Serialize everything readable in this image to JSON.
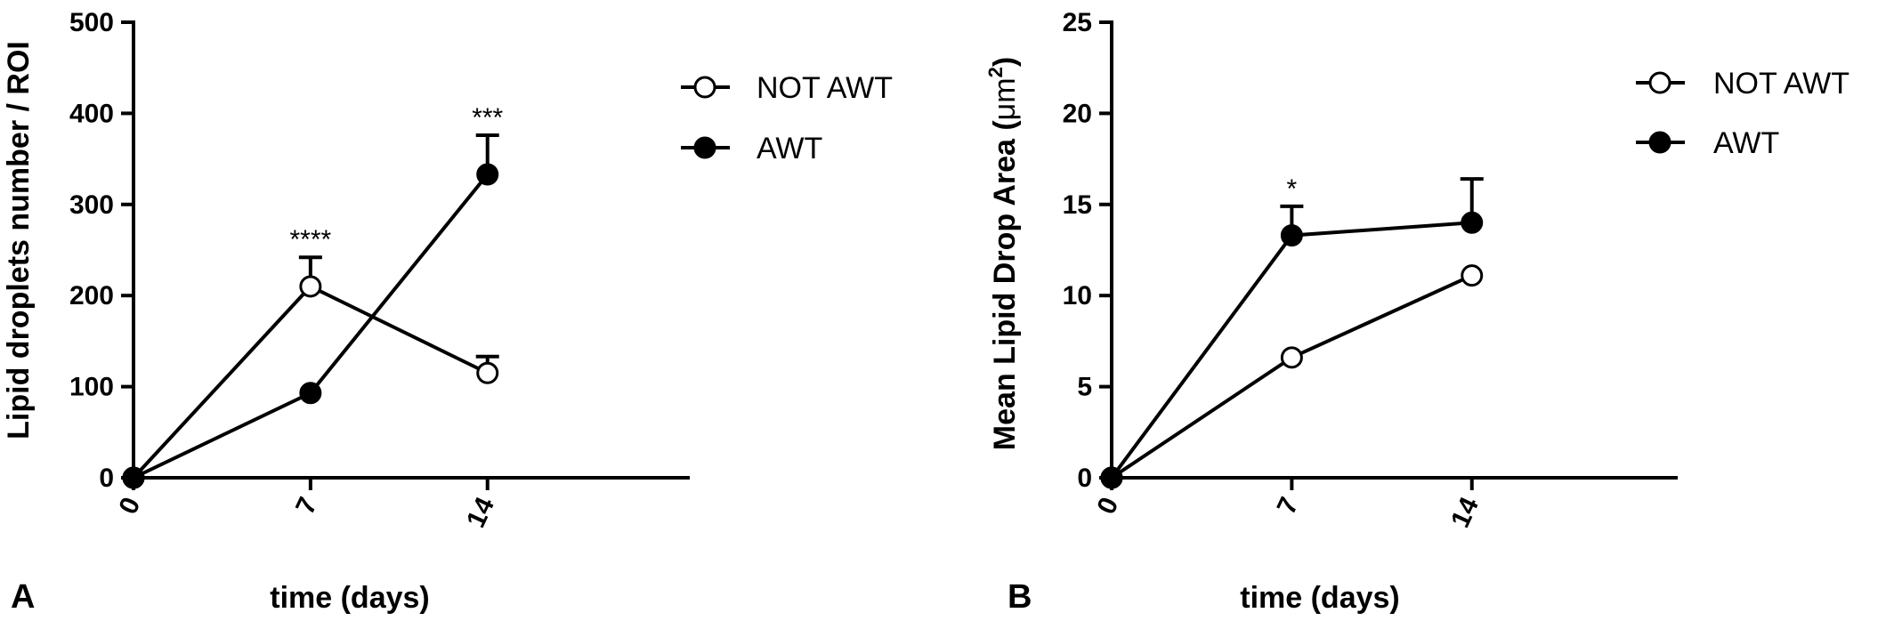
{
  "chart_data": [
    {
      "type": "line",
      "panel_label": "A",
      "xlabel": "time (days)",
      "ylabel": "Lipid droplets number / ROI",
      "x_ticks": [
        "0",
        "7",
        "14"
      ],
      "y_ticks": [
        "0",
        "100",
        "200",
        "300",
        "400",
        "500"
      ],
      "xlim": [
        0,
        22
      ],
      "ylim": [
        0,
        500
      ],
      "legend_position": "top-right",
      "series": [
        {
          "name": "NOT AWT",
          "marker": "open-circle",
          "x": [
            0,
            7,
            14
          ],
          "y": [
            0,
            210,
            115
          ],
          "error": [
            0,
            32,
            18
          ]
        },
        {
          "name": "AWT",
          "marker": "filled-circle",
          "x": [
            0,
            7,
            14
          ],
          "y": [
            0,
            93,
            333
          ],
          "error": [
            0,
            0,
            43
          ]
        }
      ],
      "annotations": [
        {
          "text": "****",
          "x": 7
        },
        {
          "text": "***",
          "x": 14
        }
      ]
    },
    {
      "type": "line",
      "panel_label": "B",
      "xlabel": "time (days)",
      "ylabel": "Mean Lipid Drop Area (",
      "ylabel_unit": "μm",
      "ylabel_sup": "2",
      "ylabel_close": ")",
      "x_ticks": [
        "0",
        "7",
        "14"
      ],
      "y_ticks": [
        "0",
        "5",
        "10",
        "15",
        "20",
        "25"
      ],
      "xlim": [
        0,
        22
      ],
      "ylim": [
        0,
        25
      ],
      "legend_position": "top-right",
      "series": [
        {
          "name": "NOT AWT",
          "marker": "open-circle",
          "x": [
            0,
            7,
            14
          ],
          "y": [
            0,
            6.6,
            11.1
          ],
          "error": [
            0,
            0,
            0
          ]
        },
        {
          "name": "AWT",
          "marker": "filled-circle",
          "x": [
            0,
            7,
            14
          ],
          "y": [
            0,
            13.3,
            14.0
          ],
          "error": [
            0,
            1.6,
            2.4
          ]
        }
      ],
      "annotations": [
        {
          "text": "*",
          "x": 7
        }
      ]
    }
  ]
}
